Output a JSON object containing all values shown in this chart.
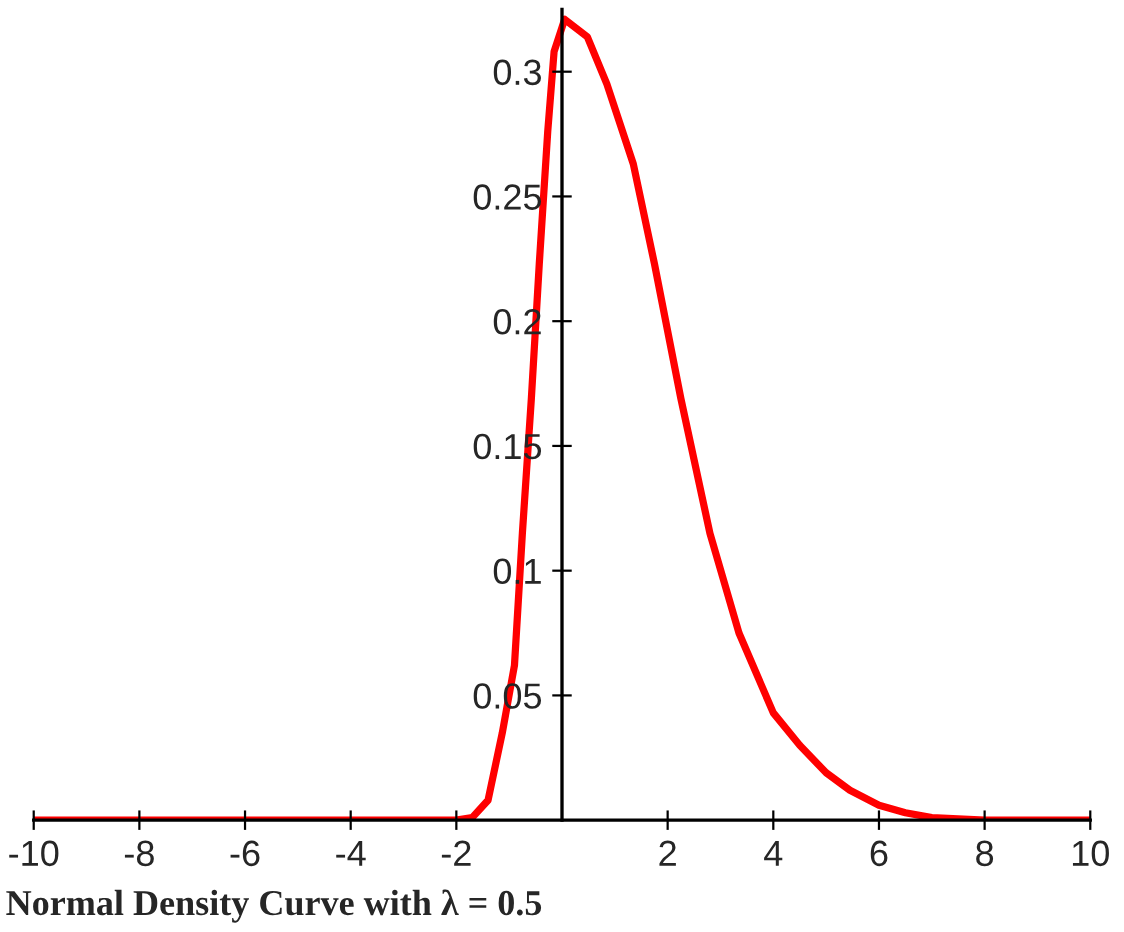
{
  "chart_data": {
    "type": "line",
    "annotations": [
      "Normal Density Curve with λ = 0.5"
    ],
    "x": [
      -10,
      -6,
      -2,
      -1.7,
      -1.4,
      -1.13,
      -0.9,
      -0.75,
      -0.58,
      -0.43,
      -0.27,
      -0.15,
      0.05,
      0.48,
      0.85,
      1.35,
      1.75,
      2.25,
      2.8,
      3.35,
      4.0,
      4.5,
      5.0,
      5.45,
      6.0,
      6.5,
      7.0,
      8.0,
      10
    ],
    "series": [
      {
        "color": "#ff0000",
        "values": [
          0,
          0,
          0,
          0.001,
          0.008,
          0.035,
          0.062,
          0.115,
          0.169,
          0.223,
          0.276,
          0.308,
          0.321,
          0.314,
          0.295,
          0.263,
          0.223,
          0.169,
          0.115,
          0.075,
          0.043,
          0.03,
          0.019,
          0.012,
          0.006,
          0.003,
          0.001,
          0,
          0
        ]
      }
    ],
    "xlim": [
      -10,
      10
    ],
    "ylim": [
      0,
      0.325
    ],
    "xticks": [
      -10,
      -8,
      -6,
      -4,
      -2,
      2,
      4,
      6,
      8,
      10
    ],
    "yticks": [
      0.05,
      0.1,
      0.15,
      0.2,
      0.25,
      0.3
    ],
    "grid": false,
    "legend": false,
    "marker": "none",
    "line_style": "solid"
  }
}
